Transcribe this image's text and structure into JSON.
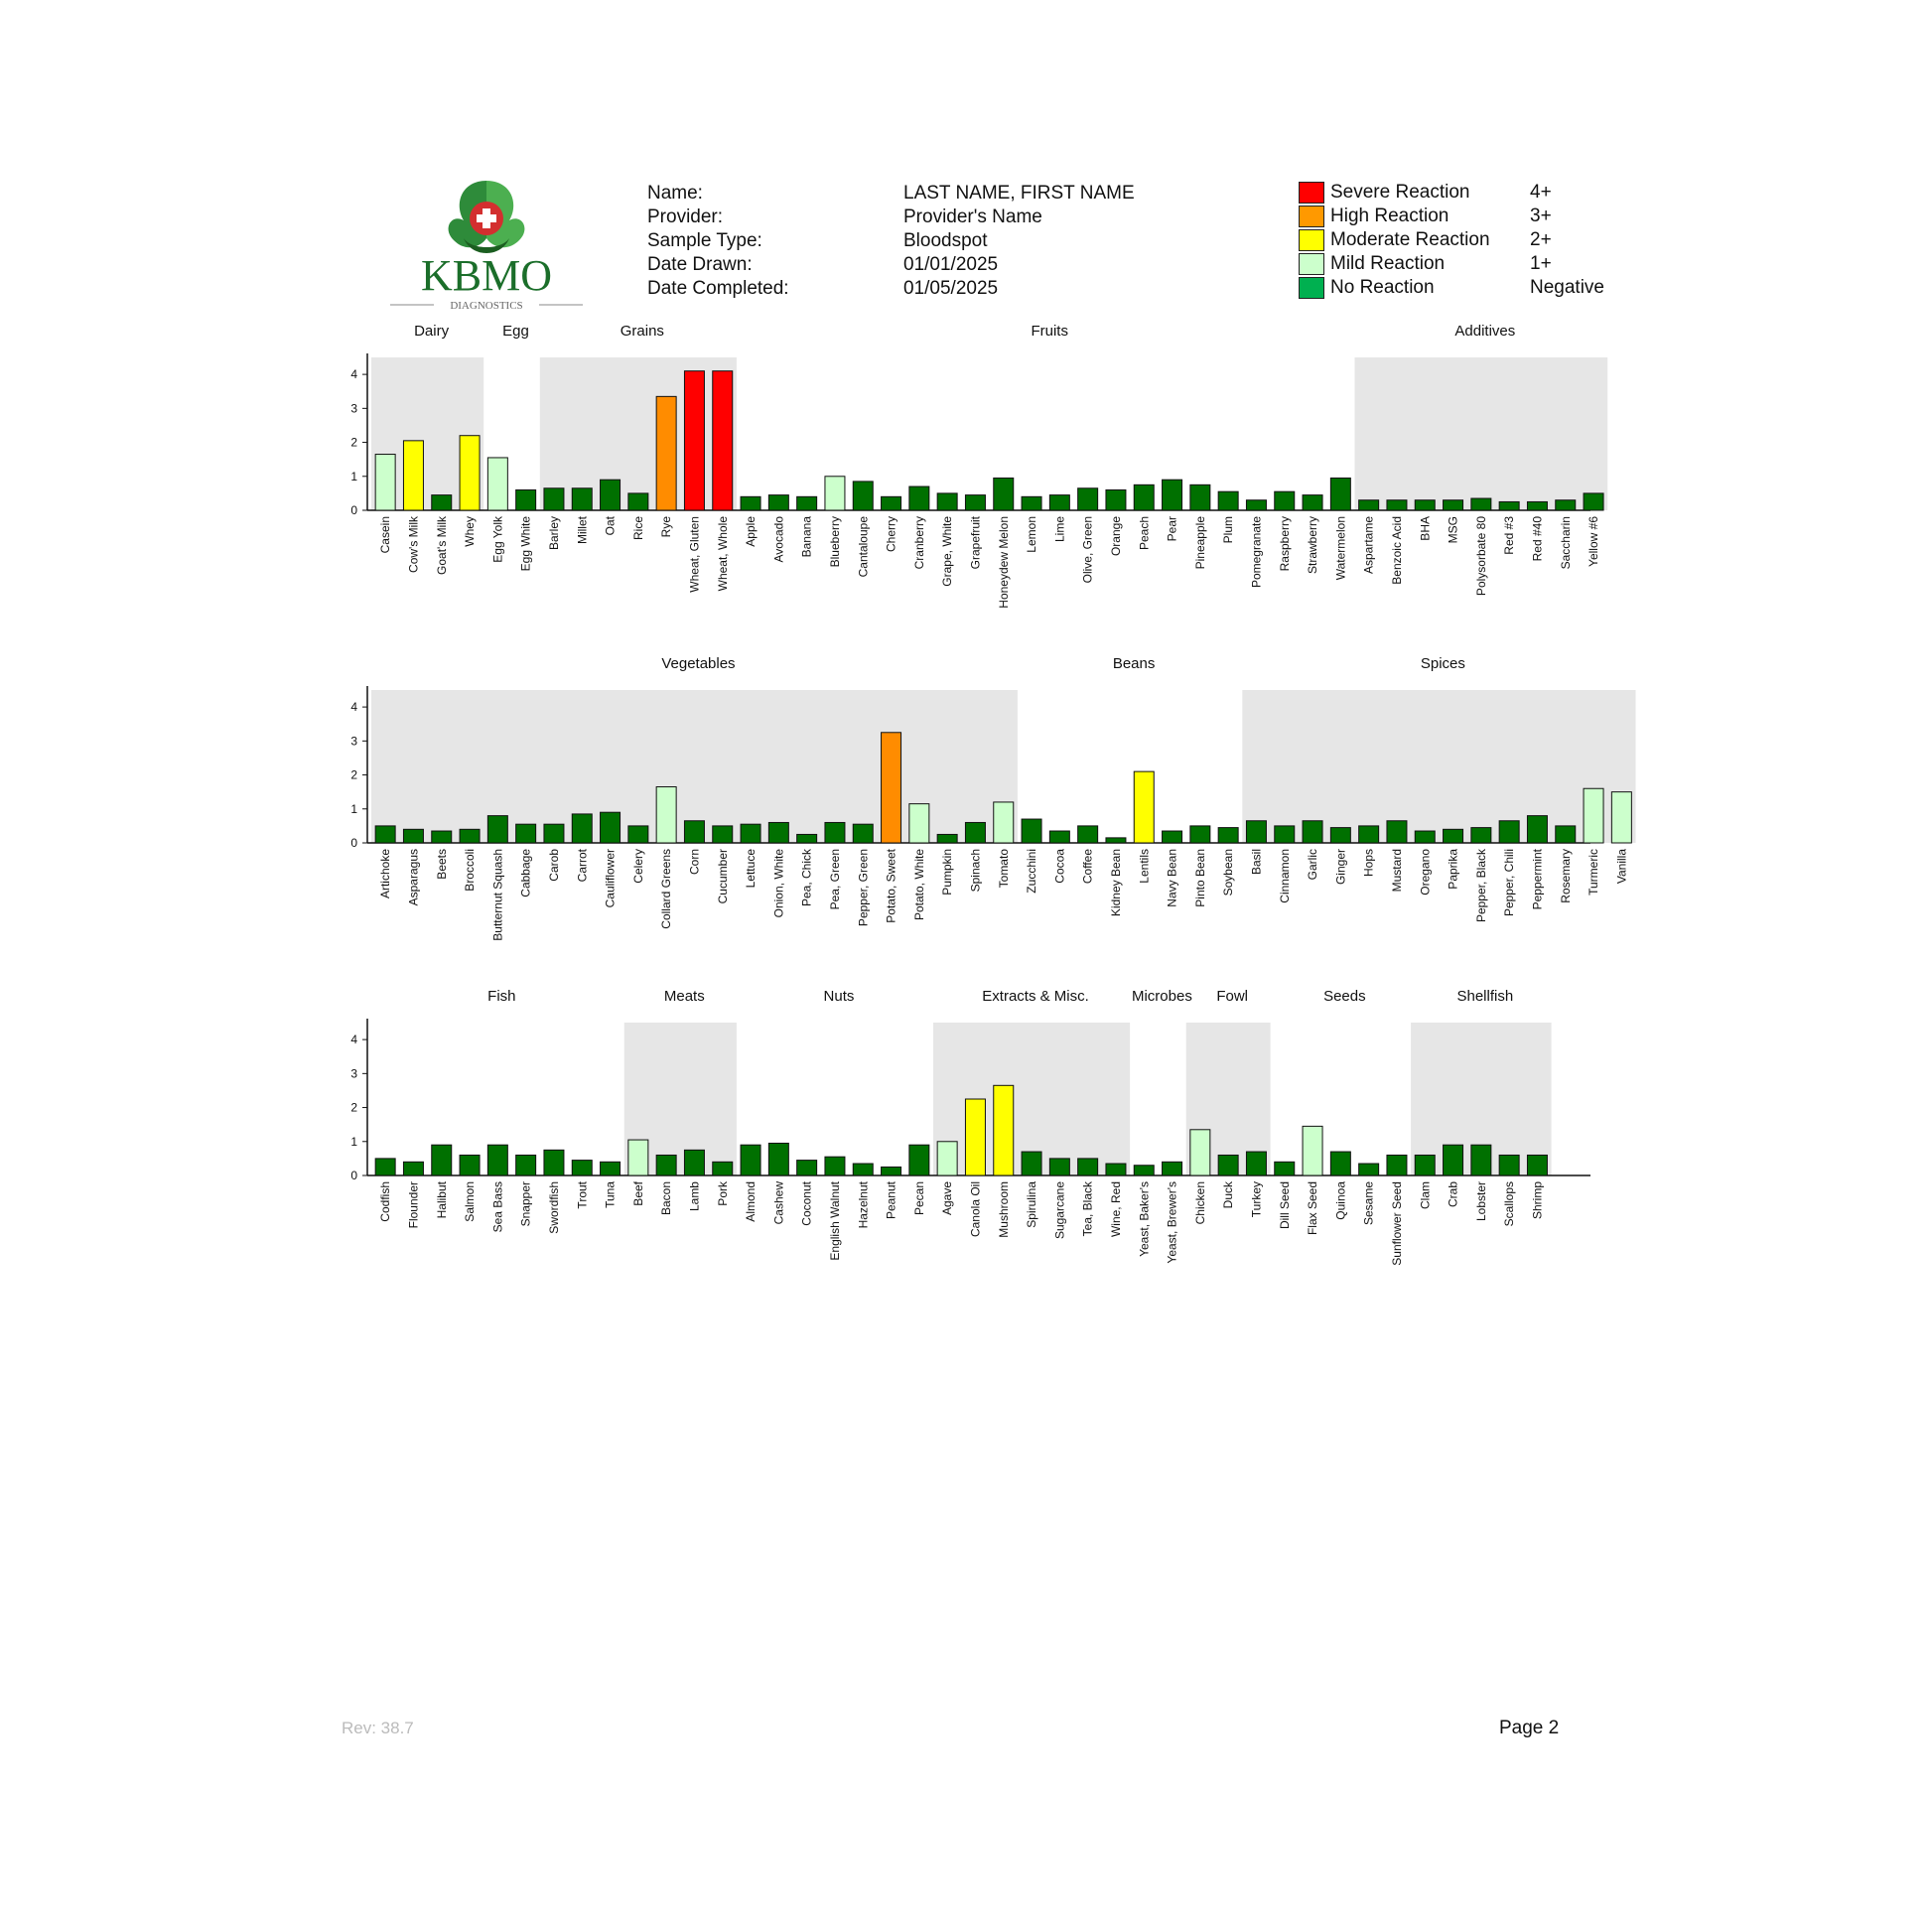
{
  "logo": {
    "brand": "KBMO",
    "sub": "DIAGNOSTICS"
  },
  "patient": {
    "labels": [
      "Name:",
      "Provider:",
      "Sample Type:",
      "Date Drawn:",
      "Date Completed:"
    ],
    "values": [
      "LAST NAME, FIRST NAME",
      "Provider's Name",
      "Bloodspot",
      "01/01/2025",
      "01/05/2025"
    ]
  },
  "legend": [
    {
      "label": "Severe Reaction",
      "grade": "4+",
      "color": "#ff0000"
    },
    {
      "label": "High Reaction",
      "grade": "3+",
      "color": "#ff9900"
    },
    {
      "label": "Moderate Reaction",
      "grade": "2+",
      "color": "#ffff00"
    },
    {
      "label": "Mild Reaction",
      "grade": "1+",
      "color": "#ccffcc"
    },
    {
      "label": "No Reaction",
      "grade": "Negative",
      "color": "#00b050"
    }
  ],
  "colors": {
    "severe": "#ff0000",
    "high": "#ff8c00",
    "moderate": "#ffff00",
    "mild": "#ccffcc",
    "none": "#007000",
    "group_shade": "#e6e6e6"
  },
  "footer": {
    "rev": "Rev: 38.7",
    "page": "Page 2"
  },
  "chart_data": [
    {
      "type": "bar",
      "ylim": [
        0,
        4.5
      ],
      "yticks": [
        0,
        1,
        2,
        3,
        4
      ],
      "groups": [
        {
          "name": "Dairy",
          "shaded": true,
          "categories": [
            "Casein",
            "Cow's Milk",
            "Goat's Milk",
            "Whey"
          ],
          "values": [
            1.65,
            2.05,
            0.45,
            2.2
          ]
        },
        {
          "name": "Egg",
          "shaded": false,
          "categories": [
            "Egg Yolk",
            "Egg White"
          ],
          "values": [
            1.55,
            0.6
          ]
        },
        {
          "name": "Grains",
          "shaded": true,
          "categories": [
            "Barley",
            "Millet",
            "Oat",
            "Rice",
            "Rye",
            "Wheat, Gluten",
            "Wheat, Whole"
          ],
          "values": [
            0.65,
            0.65,
            0.9,
            0.5,
            3.35,
            4.1,
            4.1
          ]
        },
        {
          "name": "Fruits",
          "shaded": false,
          "categories": [
            "Apple",
            "Avocado",
            "Banana",
            "Blueberry",
            "Cantaloupe",
            "Cherry",
            "Cranberry",
            "Grape, White",
            "Grapefruit",
            "Honeydew Melon",
            "Lemon",
            "Lime",
            "Olive, Green",
            "Orange",
            "Peach",
            "Pear",
            "Pineapple",
            "Plum",
            "Pomegranate",
            "Raspberry",
            "Strawberry",
            "Watermelon"
          ],
          "values": [
            0.4,
            0.45,
            0.4,
            1.0,
            0.85,
            0.4,
            0.7,
            0.5,
            0.45,
            0.95,
            0.4,
            0.45,
            0.65,
            0.6,
            0.75,
            0.9,
            0.75,
            0.55,
            0.3,
            0.55,
            0.45,
            0.95
          ]
        },
        {
          "name": "Additives",
          "shaded": true,
          "categories": [
            "Aspartame",
            "Benzoic Acid",
            "BHA",
            "MSG",
            "Polysorbate 80",
            "Red #3",
            "Red #40",
            "Saccharin",
            "Yellow #6"
          ],
          "values": [
            0.3,
            0.3,
            0.3,
            0.3,
            0.35,
            0.25,
            0.25,
            0.3,
            0.5
          ]
        }
      ]
    },
    {
      "type": "bar",
      "ylim": [
        0,
        4.5
      ],
      "yticks": [
        0,
        1,
        2,
        3,
        4
      ],
      "groups": [
        {
          "name": "Vegetables",
          "shaded": true,
          "categories": [
            "Artichoke",
            "Asparagus",
            "Beets",
            "Broccoli",
            "Butternut Squash",
            "Cabbage",
            "Carob",
            "Carrot",
            "Cauliflower",
            "Celery",
            "Collard Greens",
            "Corn",
            "Cucumber",
            "Lettuce",
            "Onion, White",
            "Pea, Chick",
            "Pea, Green",
            "Pepper, Green",
            "Potato, Sweet",
            "Potato, White",
            "Pumpkin",
            "Spinach",
            "Tomato"
          ],
          "values": [
            0.5,
            0.4,
            0.35,
            0.4,
            0.8,
            0.55,
            0.55,
            0.85,
            0.9,
            0.5,
            1.65,
            0.65,
            0.5,
            0.55,
            0.6,
            0.25,
            0.6,
            0.55,
            3.25,
            1.15,
            0.25,
            0.6,
            1.2
          ]
        },
        {
          "name": "Beans",
          "shaded": false,
          "categories": [
            "Zucchini",
            "Cocoa",
            "Coffee",
            "Kidney Bean",
            "Lentils",
            "Navy Bean",
            "Pinto Bean",
            "Soybean"
          ],
          "values": [
            0.7,
            0.35,
            0.5,
            0.15,
            2.1,
            0.35,
            0.5,
            0.45
          ]
        },
        {
          "name": "Spices",
          "shaded": true,
          "categories": [
            "Basil",
            "Cinnamon",
            "Garlic",
            "Ginger",
            "Hops",
            "Mustard",
            "Oregano",
            "Paprika",
            "Pepper, Black",
            "Pepper, Chili",
            "Peppermint",
            "Rosemary",
            "Turmeric",
            "Vanilla"
          ],
          "values": [
            0.65,
            0.5,
            0.65,
            0.45,
            0.5,
            0.65,
            0.35,
            0.4,
            0.45,
            0.65,
            0.8,
            0.5,
            1.6,
            1.5
          ]
        }
      ]
    },
    {
      "type": "bar",
      "ylim": [
        0,
        4.5
      ],
      "yticks": [
        0,
        1,
        2,
        3,
        4
      ],
      "groups": [
        {
          "name": "Fish",
          "shaded": false,
          "categories": [
            "Codfish",
            "Flounder",
            "Halibut",
            "Salmon",
            "Sea Bass",
            "Snapper",
            "Swordfish",
            "Trout",
            "Tuna"
          ],
          "values": [
            0.5,
            0.4,
            0.9,
            0.6,
            0.9,
            0.6,
            0.75,
            0.45,
            0.4
          ]
        },
        {
          "name": "Meats",
          "shaded": true,
          "categories": [
            "Beef",
            "Bacon",
            "Lamb",
            "Pork"
          ],
          "values": [
            1.05,
            0.6,
            0.75,
            0.4
          ]
        },
        {
          "name": "Nuts",
          "shaded": false,
          "categories": [
            "Almond",
            "Cashew",
            "Coconut",
            "English Walnut",
            "Hazelnut",
            "Peanut",
            "Pecan"
          ],
          "values": [
            0.9,
            0.95,
            0.45,
            0.55,
            0.35,
            0.25,
            0.9
          ]
        },
        {
          "name": "Extracts & Misc.",
          "shaded": true,
          "categories": [
            "Agave",
            "Canola Oil",
            "Mushroom",
            "Spirulina",
            "Sugarcane",
            "Tea, Black",
            "Wine, Red"
          ],
          "values": [
            1.0,
            2.25,
            2.65,
            0.7,
            0.5,
            0.5,
            0.35
          ]
        },
        {
          "name": "Microbes",
          "shaded": false,
          "categories": [
            "Yeast, Baker's",
            "Yeast, Brewer's"
          ],
          "values": [
            0.3,
            0.4
          ]
        },
        {
          "name": "Fowl",
          "shaded": true,
          "categories": [
            "Chicken",
            "Duck",
            "Turkey"
          ],
          "values": [
            1.35,
            0.6,
            0.7
          ]
        },
        {
          "name": "Seeds",
          "shaded": false,
          "categories": [
            "Dill Seed",
            "Flax Seed",
            "Quinoa",
            "Sesame",
            "Sunflower Seed"
          ],
          "values": [
            0.4,
            1.45,
            0.7,
            0.35,
            0.6
          ]
        },
        {
          "name": "Shellfish",
          "shaded": true,
          "categories": [
            "Clam",
            "Crab",
            "Lobster",
            "Scallops",
            "Shrimp"
          ],
          "values": [
            0.6,
            0.9,
            0.9,
            0.6,
            0.6
          ]
        }
      ]
    }
  ]
}
